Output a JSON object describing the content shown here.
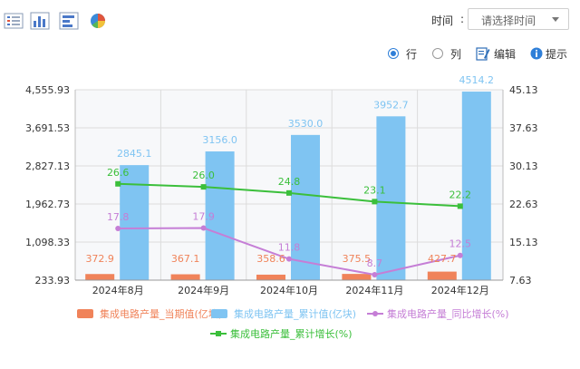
{
  "toolbar": {
    "icons": [
      "list-view-icon",
      "bar-chart-icon",
      "horizontal-bar-icon",
      "pie-chart-icon"
    ],
    "time_label": "时间",
    "time_colon": ":",
    "time_placeholder": "请选择时间"
  },
  "options": {
    "row_label": "行",
    "col_label": "列",
    "edit_label": "编辑",
    "tip_label": "提示",
    "selected": "row"
  },
  "colors": {
    "bar_current": "#f0835a",
    "bar_cumulative": "#7fc4f2",
    "line_yoy": "#c57ed6",
    "line_cumulative_growth": "#3bbf3b",
    "accent": "#2f7fd8"
  },
  "chart_data": {
    "type": "bar",
    "categories": [
      "2024年8月",
      "2024年9月",
      "2024年10月",
      "2024年11月",
      "2024年12月"
    ],
    "series": [
      {
        "name": "集成电路产量_当期值(亿块)",
        "type": "bar",
        "axis": "left",
        "values": [
          372.9,
          367.1,
          358.6,
          375.5,
          427.7
        ]
      },
      {
        "name": "集成电路产量_累计值(亿块)",
        "type": "bar",
        "axis": "left",
        "values": [
          2845.1,
          3156.0,
          3530.0,
          3952.7,
          4514.2
        ]
      },
      {
        "name": "集成电路产量_同比增长(%)",
        "type": "line",
        "axis": "right",
        "values": [
          17.8,
          17.9,
          11.8,
          8.7,
          12.5
        ]
      },
      {
        "name": "集成电路产量_累计增长(%)",
        "type": "line",
        "axis": "right",
        "values": [
          26.6,
          26.0,
          24.8,
          23.1,
          22.2
        ]
      }
    ],
    "data_labels": {
      "current": [
        "372.9",
        "367.1",
        "358.6",
        "375.5",
        "427.7"
      ],
      "cumulative": [
        "2845.1",
        "3156.0",
        "3530.0",
        "3952.7",
        "4514.2"
      ],
      "yoy": [
        "17.8",
        "17.9",
        "11.8",
        "8.7",
        "12.5"
      ],
      "cumulative_growth": [
        "26.6",
        "26.0",
        "24.8",
        "23.1",
        "22.2"
      ]
    },
    "left_axis": {
      "ticks": [
        "233.93",
        "1,098.33",
        "1,962.73",
        "2,827.13",
        "3,691.53",
        "4,555.93"
      ],
      "range": [
        233.93,
        4555.93
      ]
    },
    "right_axis": {
      "ticks": [
        "7.63",
        "15.13",
        "22.63",
        "30.13",
        "37.63",
        "45.13"
      ],
      "range": [
        7.63,
        45.13
      ]
    },
    "grid": true,
    "legend_position": "bottom"
  }
}
